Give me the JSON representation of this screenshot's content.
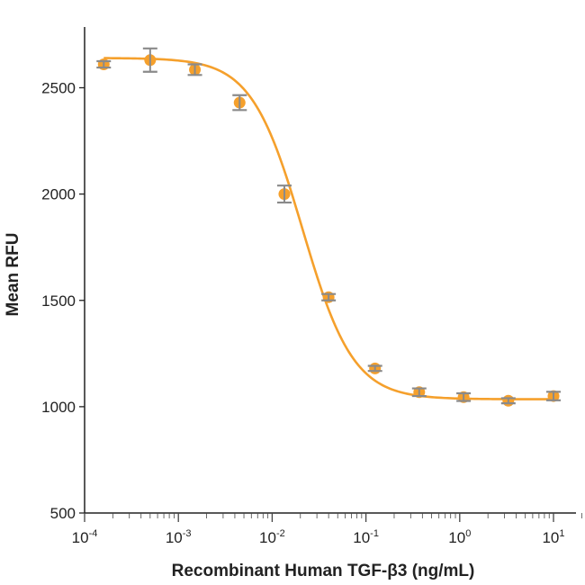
{
  "chart_data": {
    "type": "scatter",
    "title": "",
    "xlabel": "Recombinant Human TGF-β3 (ng/mL)",
    "ylabel": "Mean RFU",
    "x_scale": "log",
    "xlim": [
      0.0001,
      20
    ],
    "ylim": [
      500,
      2800
    ],
    "x_ticks": [
      {
        "base": "10",
        "exp": "-4"
      },
      {
        "base": "10",
        "exp": "-3"
      },
      {
        "base": "10",
        "exp": "-2"
      },
      {
        "base": "10",
        "exp": "-1"
      },
      {
        "base": "10",
        "exp": "0"
      },
      {
        "base": "10",
        "exp": "1"
      }
    ],
    "y_ticks": [
      "500",
      "1000",
      "1500",
      "2000",
      "2500"
    ],
    "grid": false,
    "series": [
      {
        "color": "#f5a02c",
        "error_color": "#8a8a8a",
        "points": [
          {
            "x": 0.00016,
            "y": 2610,
            "err": 15
          },
          {
            "x": 0.0005,
            "y": 2630,
            "err": 55
          },
          {
            "x": 0.0015,
            "y": 2585,
            "err": 25
          },
          {
            "x": 0.0045,
            "y": 2430,
            "err": 35
          },
          {
            "x": 0.0135,
            "y": 2000,
            "err": 40
          },
          {
            "x": 0.04,
            "y": 1515,
            "err": 15
          },
          {
            "x": 0.125,
            "y": 1180,
            "err": 12
          },
          {
            "x": 0.37,
            "y": 1068,
            "err": 18
          },
          {
            "x": 1.1,
            "y": 1045,
            "err": 18
          },
          {
            "x": 3.3,
            "y": 1028,
            "err": 12
          },
          {
            "x": 10,
            "y": 1050,
            "err": 20
          }
        ],
        "fit": {
          "model": "4PL",
          "top": 2640,
          "bottom": 1035,
          "ec50": 0.021,
          "hill": 1.6
        }
      }
    ]
  }
}
